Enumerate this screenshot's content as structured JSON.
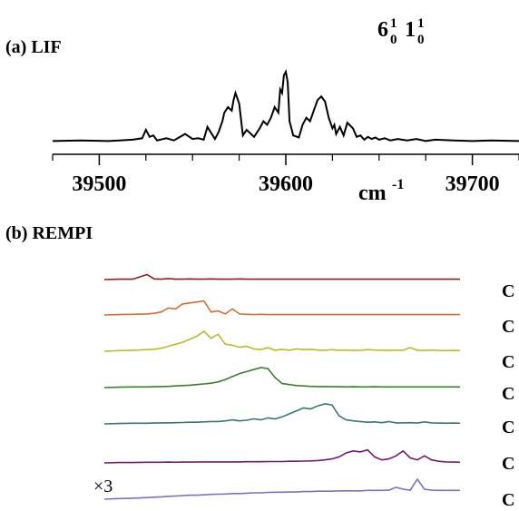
{
  "chart_data": [
    {
      "type": "line",
      "panel_label": "(a) LIF",
      "band_label": {
        "base": [
          "6",
          "1"
        ],
        "sup": [
          "1",
          "1"
        ],
        "sub": [
          "0",
          "0"
        ]
      },
      "xlabel": "cm",
      "xlabel_exp": "-1",
      "xlim": [
        39475,
        39725
      ],
      "major_ticks": [
        39500,
        39600,
        39700
      ],
      "minor_ticks": [
        39475,
        39525,
        39550,
        39575,
        39625,
        39650,
        39675,
        39725
      ],
      "tick_labels": [
        "39500",
        "39600",
        "39700"
      ],
      "series": [
        {
          "color": "#000000",
          "x": [
            39475,
            39490,
            39505,
            39518,
            39523,
            39525,
            39527,
            39529,
            39531,
            39536,
            39540,
            39546,
            39550,
            39553,
            39556,
            39558,
            39562,
            39564,
            39566,
            39567,
            39569,
            39571,
            39572,
            39573,
            39575,
            39577,
            39579,
            39583,
            39586,
            39588,
            39590,
            39592,
            39594,
            39596,
            39597,
            39598,
            39599,
            39600,
            39601,
            39602,
            39604,
            39607,
            39609,
            39611,
            39613,
            39615,
            39617,
            39619,
            39621,
            39623,
            39625,
            39626,
            39627,
            39629,
            39631,
            39633,
            39636,
            39638,
            39640,
            39642,
            39644,
            39646,
            39648,
            39650,
            39653,
            39656,
            39660,
            39665,
            39670,
            39675,
            39680,
            39690,
            39700,
            39710,
            39725
          ],
          "y": [
            0.02,
            0.03,
            0.02,
            0.04,
            0.06,
            0.18,
            0.08,
            0.1,
            0.03,
            0.06,
            0.03,
            0.12,
            0.05,
            0.06,
            0.04,
            0.22,
            0.05,
            0.15,
            0.3,
            0.42,
            0.5,
            0.45,
            0.6,
            0.7,
            0.55,
            0.1,
            0.18,
            0.08,
            0.2,
            0.3,
            0.25,
            0.35,
            0.5,
            0.42,
            0.75,
            0.7,
            0.95,
            1.0,
            0.85,
            0.3,
            0.1,
            0.07,
            0.25,
            0.35,
            0.3,
            0.45,
            0.6,
            0.65,
            0.58,
            0.35,
            0.2,
            0.25,
            0.12,
            0.22,
            0.1,
            0.28,
            0.2,
            0.08,
            0.1,
            0.04,
            0.08,
            0.05,
            0.07,
            0.04,
            0.06,
            0.03,
            0.05,
            0.03,
            0.05,
            0.02,
            0.04,
            0.03,
            0.02,
            0.03,
            0.02
          ]
        }
      ]
    },
    {
      "type": "line",
      "panel_label": "(b) REMPI",
      "scale_note": "×3",
      "x_relative": [
        0,
        0.04,
        0.08,
        0.12,
        0.14,
        0.16,
        0.18,
        0.2,
        0.22,
        0.24,
        0.26,
        0.28,
        0.3,
        0.32,
        0.34,
        0.36,
        0.38,
        0.4,
        0.42,
        0.44,
        0.46,
        0.48,
        0.5,
        0.52,
        0.54,
        0.56,
        0.58,
        0.6,
        0.62,
        0.64,
        0.66,
        0.68,
        0.7,
        0.72,
        0.74,
        0.76,
        0.78,
        0.8,
        0.82,
        0.84,
        0.86,
        0.88,
        0.9,
        0.92,
        0.94,
        0.96,
        0.98,
        1.0
      ],
      "series": [
        {
          "label": "C",
          "color": "#8b1e1e",
          "values": [
            0,
            0.02,
            0.02,
            0.25,
            0.03,
            0.02,
            0.05,
            0.02,
            0.02,
            0.03,
            0.02,
            0.02,
            0.03,
            0.02,
            0.02,
            0.02,
            0.03,
            0.02,
            0.02,
            0.02,
            0.02,
            0.02,
            0.02,
            0.02,
            0.02,
            0.02,
            0.02,
            0.02,
            0.02,
            0.02,
            0.02,
            0.02,
            0.02,
            0.02,
            0.02,
            0.02,
            0.02,
            0.02,
            0.02,
            0.02,
            0.02,
            0.02,
            0.02,
            0.02,
            0.02,
            0.02,
            0.02,
            0.02
          ]
        },
        {
          "label": "C",
          "color": "#d2703a",
          "values": [
            0,
            0.02,
            0.03,
            0.05,
            0.08,
            0.15,
            0.35,
            0.3,
            0.55,
            0.6,
            0.65,
            0.7,
            0.15,
            0.2,
            0.05,
            0.3,
            0.05,
            0.03,
            0.02,
            0.03,
            0.02,
            0.02,
            0.02,
            0.02,
            0.02,
            0.02,
            0.02,
            0.02,
            0.02,
            0.02,
            0.02,
            0.02,
            0.02,
            0.02,
            0.02,
            0.02,
            0.02,
            0.02,
            0.02,
            0.02,
            0.02,
            0.02,
            0.02,
            0.02,
            0.02,
            0.02,
            0.02,
            0.02
          ]
        },
        {
          "label": "C",
          "color": "#b5bd2e",
          "values": [
            0,
            0.03,
            0.05,
            0.08,
            0.1,
            0.15,
            0.25,
            0.35,
            0.45,
            0.6,
            0.75,
            1.0,
            0.65,
            0.85,
            0.35,
            0.3,
            0.2,
            0.25,
            0.12,
            0.08,
            0.18,
            0.05,
            0.1,
            0.05,
            0.12,
            0.08,
            0.1,
            0.06,
            0.05,
            0.08,
            0.05,
            0.06,
            0.04,
            0.05,
            0.08,
            0.06,
            0.05,
            0.04,
            0.06,
            0.05,
            0.18,
            0.05,
            0.04,
            0.06,
            0.04,
            0.03,
            0.04,
            0.03
          ]
        },
        {
          "label": "C",
          "color": "#3f7a35",
          "values": [
            0,
            0.02,
            0.03,
            0.03,
            0.04,
            0.05,
            0.06,
            0.08,
            0.1,
            0.12,
            0.15,
            0.18,
            0.22,
            0.28,
            0.4,
            0.55,
            0.7,
            0.8,
            0.9,
            1.0,
            0.95,
            0.5,
            0.2,
            0.15,
            0.1,
            0.08,
            0.06,
            0.05,
            0.05,
            0.04,
            0.04,
            0.03,
            0.04,
            0.03,
            0.03,
            0.04,
            0.03,
            0.03,
            0.03,
            0.03,
            0.03,
            0.03,
            0.03,
            0.03,
            0.03,
            0.03,
            0.03,
            0.03
          ]
        },
        {
          "label": "C",
          "color": "#3f7372",
          "values": [
            0,
            0.02,
            0.03,
            0.03,
            0.04,
            0.05,
            0.05,
            0.06,
            0.07,
            0.08,
            0.08,
            0.1,
            0.12,
            0.12,
            0.15,
            0.2,
            0.15,
            0.18,
            0.25,
            0.2,
            0.3,
            0.25,
            0.35,
            0.5,
            0.65,
            0.8,
            0.75,
            0.9,
            1.0,
            0.95,
            0.4,
            0.2,
            0.15,
            0.12,
            0.08,
            0.1,
            0.06,
            0.12,
            0.05,
            0.05,
            0.06,
            0.04,
            0.1,
            0.05,
            0.04,
            0.03,
            0.04,
            0.03
          ]
        },
        {
          "label": "C",
          "color": "#6e1f6b",
          "values": [
            0,
            0.02,
            0.02,
            0.03,
            0.03,
            0.03,
            0.04,
            0.03,
            0.04,
            0.04,
            0.04,
            0.05,
            0.05,
            0.05,
            0.05,
            0.05,
            0.05,
            0.06,
            0.06,
            0.06,
            0.07,
            0.07,
            0.07,
            0.08,
            0.08,
            0.09,
            0.1,
            0.12,
            0.15,
            0.2,
            0.3,
            0.5,
            0.6,
            0.55,
            0.65,
            0.3,
            0.15,
            0.2,
            0.35,
            0.6,
            0.25,
            0.15,
            0.35,
            0.15,
            0.08,
            0.05,
            0.04,
            0.03
          ]
        },
        {
          "label": "C",
          "color": "#7a73b8",
          "values": [
            0,
            0.03,
            0.05,
            0.08,
            0.1,
            0.12,
            0.14,
            0.16,
            0.18,
            0.2,
            0.2,
            0.22,
            0.24,
            0.25,
            0.26,
            0.28,
            0.28,
            0.3,
            0.32,
            0.32,
            0.34,
            0.35,
            0.35,
            0.36,
            0.36,
            0.38,
            0.38,
            0.4,
            0.4,
            0.4,
            0.42,
            0.42,
            0.42,
            0.42,
            0.44,
            0.44,
            0.44,
            0.45,
            0.6,
            0.5,
            0.45,
            1.0,
            0.5,
            0.45,
            0.44,
            0.44,
            0.44,
            0.44
          ]
        }
      ]
    }
  ]
}
